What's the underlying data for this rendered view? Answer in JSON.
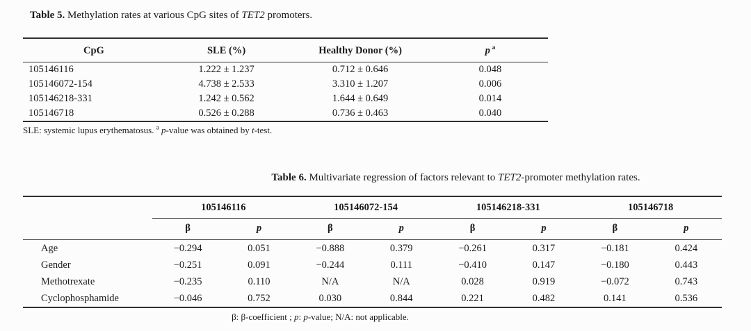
{
  "page": {
    "colors": {
      "background": "#fcfcfc",
      "text": "#1b1b1b",
      "rule": "#2e2e2e"
    }
  },
  "table5": {
    "caption": {
      "label": "Table 5.",
      "pre": "Methylation rates at various CpG sites of",
      "gene": "TET2",
      "post": "promoters."
    },
    "headers": {
      "cpg": "CpG",
      "sle": "SLE (%)",
      "healthy": "Healthy Donor (%)",
      "p_symbol": "p",
      "p_sup": "a"
    },
    "rows": [
      {
        "cells": [
          "105146116",
          "1.222 ± 1.237",
          "0.712 ± 0.646",
          "0.048"
        ]
      },
      {
        "cells": [
          "105146072-154",
          "4.738 ± 2.533",
          "3.310 ± 1.207",
          "0.006"
        ]
      },
      {
        "cells": [
          "105146218-331",
          "1.242 ± 0.562",
          "1.644 ± 0.649",
          "0.014"
        ]
      },
      {
        "cells": [
          "105146718",
          "0.526 ± 0.288",
          "0.736 ± 0.463",
          "0.040"
        ]
      }
    ],
    "footnote": {
      "part1": "SLE: systemic lupus erythematosus.",
      "sup": "a",
      "p": "p",
      "part2": "-value was obtained by",
      "t": "t",
      "part3": "-test."
    }
  },
  "table6": {
    "caption": {
      "label": "Table 6.",
      "pre": "Multivariate regression of factors relevant to",
      "gene": "TET2",
      "post": "-promoter methylation rates."
    },
    "group_headers": [
      "105146116",
      "105146072-154",
      "105146218-331",
      "105146718"
    ],
    "sub_headers": {
      "beta": "β",
      "p": "p"
    },
    "rows": [
      {
        "label": "Age",
        "cells": [
          "−0.294",
          "0.051",
          "−0.888",
          "0.379",
          "−0.261",
          "0.317",
          "−0.181",
          "0.424"
        ]
      },
      {
        "label": "Gender",
        "cells": [
          "−0.251",
          "0.091",
          "−0.244",
          "0.111",
          "−0.410",
          "0.147",
          "−0.180",
          "0.443"
        ]
      },
      {
        "label": "Methotrexate",
        "cells": [
          "−0.235",
          "0.110",
          "N/A",
          "N/A",
          "0.028",
          "0.919",
          "−0.072",
          "0.743"
        ]
      },
      {
        "label": "Cyclophosphamide",
        "cells": [
          "−0.046",
          "0.752",
          "0.030",
          "0.844",
          "0.221",
          "0.482",
          "0.141",
          "0.536"
        ]
      }
    ],
    "footnote": {
      "part1": "β: β-coefficient ;",
      "p1": "p",
      "part2": ":",
      "p2": "p",
      "part3": "-value; N/A: not applicable."
    }
  }
}
